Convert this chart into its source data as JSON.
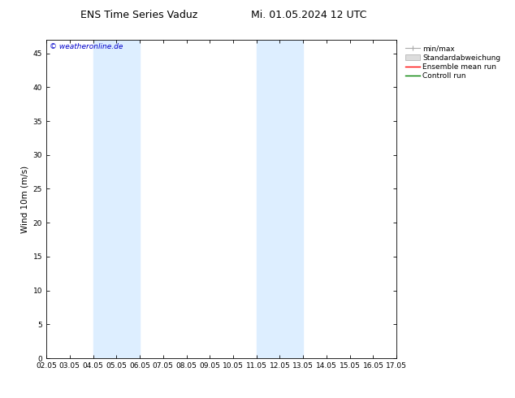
{
  "title_left": "ENS Time Series Vaduz",
  "title_right": "Mi. 01.05.2024 12 UTC",
  "ylabel": "Wind 10m (m/s)",
  "watermark": "© weatheronline.de",
  "ylim": [
    0,
    47
  ],
  "yticks": [
    0,
    5,
    10,
    15,
    20,
    25,
    30,
    35,
    40,
    45
  ],
  "xtick_labels": [
    "02.05",
    "03.05",
    "04.05",
    "05.05",
    "06.05",
    "07.05",
    "08.05",
    "09.05",
    "10.05",
    "11.05",
    "12.05",
    "13.05",
    "14.05",
    "15.05",
    "16.05",
    "17.05"
  ],
  "xtick_values": [
    0,
    1,
    2,
    3,
    4,
    5,
    6,
    7,
    8,
    9,
    10,
    11,
    12,
    13,
    14,
    15
  ],
  "shaded_bands": [
    {
      "x_start": 2,
      "x_end": 4,
      "color": "#ddeeff"
    },
    {
      "x_start": 9,
      "x_end": 11,
      "color": "#ddeeff"
    }
  ],
  "legend_items": [
    {
      "label": "min/max",
      "color": "#aaaaaa",
      "style": "errorbar"
    },
    {
      "label": "Standardabweichung",
      "color": "#cccccc",
      "style": "band"
    },
    {
      "label": "Ensemble mean run",
      "color": "#ff0000",
      "style": "line"
    },
    {
      "label": "Controll run",
      "color": "#008000",
      "style": "line"
    }
  ],
  "watermark_color": "#0000cc",
  "background_color": "#ffffff",
  "plot_bg_color": "#ffffff",
  "title_fontsize": 9,
  "tick_fontsize": 6.5,
  "legend_fontsize": 6.5,
  "ylabel_fontsize": 7.5
}
